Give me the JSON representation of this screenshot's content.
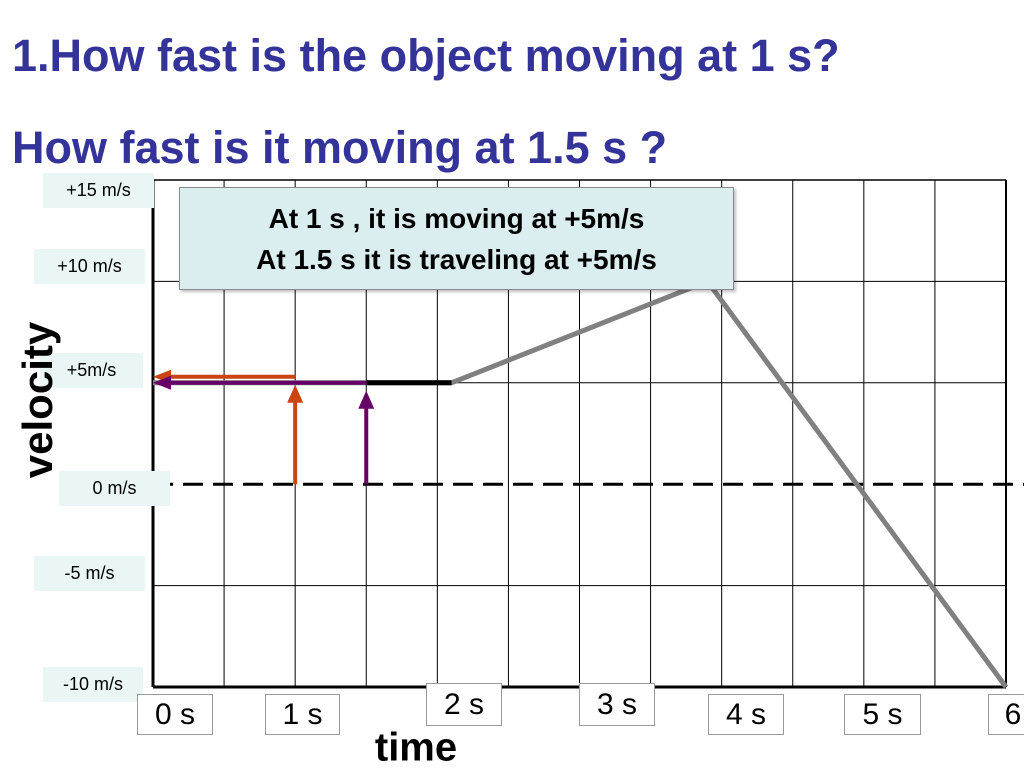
{
  "questions": {
    "q1": "1.How fast is the object moving at 1 s?",
    "q2": "How fast is it moving at 1.5 s ?"
  },
  "answer_box": {
    "line1": "At 1 s , it is moving at +5m/s",
    "line2": "At 1.5 s  it is traveling at +5m/s"
  },
  "colors": {
    "title": "#333399",
    "velocity_line": "#808080",
    "flat_segment": "#000000",
    "arrow_1s": "#cc4411",
    "arrow_1_5s": "#660066",
    "answer_bg": "#daedef",
    "label_bg": "#eaf5f5"
  },
  "chart_data": {
    "type": "line",
    "xlabel": "time",
    "ylabel": "velocity",
    "xlim": [
      0,
      6
    ],
    "ylim": [
      -10,
      15
    ],
    "grid": true,
    "x_ticks": [
      {
        "value": 0,
        "label": "0 s"
      },
      {
        "value": 1,
        "label": "1 s"
      },
      {
        "value": 2,
        "label": "2 s"
      },
      {
        "value": 3,
        "label": "3 s"
      },
      {
        "value": 4,
        "label": "4 s"
      },
      {
        "value": 5,
        "label": "5 s"
      },
      {
        "value": 6,
        "label": "6"
      }
    ],
    "y_ticks": [
      {
        "value": 15,
        "label": "+15 m/s"
      },
      {
        "value": 10,
        "label": "+10 m/s"
      },
      {
        "value": 5,
        "label": "+5m/s"
      },
      {
        "value": 0,
        "label": "0 m/s"
      },
      {
        "value": -5,
        "label": "-5 m/s"
      },
      {
        "value": -10,
        "label": "-10 m/s"
      }
    ],
    "zero_line": "dashed",
    "series": [
      {
        "values": [
          [
            0,
            5
          ],
          [
            2.1,
            5
          ],
          [
            3.9,
            10
          ],
          [
            6,
            -10
          ]
        ]
      }
    ],
    "highlight_segment": {
      "x": [
        1.5,
        2.1
      ],
      "y": 5
    },
    "arrows": [
      {
        "at_time": 1,
        "velocity": 5
      },
      {
        "at_time": 1.5,
        "velocity": 5
      }
    ]
  }
}
